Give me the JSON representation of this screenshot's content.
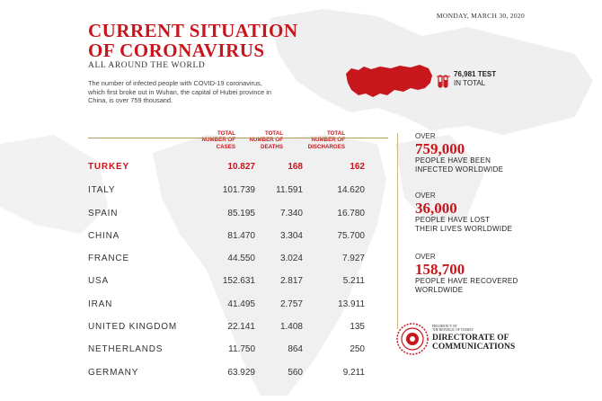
{
  "header": {
    "date": "MONDAY, MARCH 30, 2020",
    "title_line1": "CURRENT SITUATION",
    "title_line2": "OF CORONAVIRUS",
    "subtitle": "ALL AROUND THE WORLD",
    "intro": "The number of infected people with COVID-19 coronavirus, which first broke out in Wuhan, the capital of Hubei province in China, is over 759 thousand."
  },
  "test_info": {
    "number": "76,981 TEST",
    "label": "IN TOTAL"
  },
  "table": {
    "headers": {
      "cases_1": "TOTAL",
      "cases_2": "NUMBER OF",
      "cases_3": "CASES",
      "deaths_1": "TOTAL",
      "deaths_2": "NUMBER OF",
      "deaths_3": "DEATHS",
      "discharges_1": "TOTAL",
      "discharges_2": "NUMBER OF",
      "discharges_3": "DISCHARGES"
    },
    "rows": [
      {
        "country": "TURKEY",
        "cases": "10.827",
        "deaths": "168",
        "discharges": "162"
      },
      {
        "country": "ITALY",
        "cases": "101.739",
        "deaths": "11.591",
        "discharges": "14.620"
      },
      {
        "country": "SPAIN",
        "cases": "85.195",
        "deaths": "7.340",
        "discharges": "16.780"
      },
      {
        "country": "CHINA",
        "cases": "81.470",
        "deaths": "3.304",
        "discharges": "75.700"
      },
      {
        "country": "FRANCE",
        "cases": "44.550",
        "deaths": "3.024",
        "discharges": "7.927"
      },
      {
        "country": "USA",
        "cases": "152.631",
        "deaths": "2.817",
        "discharges": "5.211"
      },
      {
        "country": "IRAN",
        "cases": "41.495",
        "deaths": "2.757",
        "discharges": "13.911"
      },
      {
        "country": "UNITED KINGDOM",
        "cases": "22.141",
        "deaths": "1.408",
        "discharges": "135"
      },
      {
        "country": "NETHERLANDS",
        "cases": "11.750",
        "deaths": "864",
        "discharges": "250"
      },
      {
        "country": "GERMANY",
        "cases": "63.929",
        "deaths": "560",
        "discharges": "9.211"
      }
    ]
  },
  "stats": [
    {
      "over": "OVER",
      "value": "759,000",
      "desc1": "PEOPLE HAVE BEEN",
      "desc2": "INFECTED WORLDWIDE"
    },
    {
      "over": "OVER",
      "value": "36,000",
      "desc1": "PEOPLE HAVE LOST",
      "desc2": "THEIR LIVES WORLDWIDE"
    },
    {
      "over": "OVER",
      "value": "158,700",
      "desc1": "PEOPLE HAVE RECOVERED",
      "desc2": "WORLDWIDE"
    }
  ],
  "logo": {
    "line1": "PRESIDENCY OF",
    "line2": "THE REPUBLIC OF TURKEY",
    "line3": "DIRECTORATE OF",
    "line4": "COMMUNICATIONS"
  },
  "colors": {
    "accent": "#c8161d",
    "gold_rule": "#b59a5a",
    "map_gray": "#ececec"
  }
}
